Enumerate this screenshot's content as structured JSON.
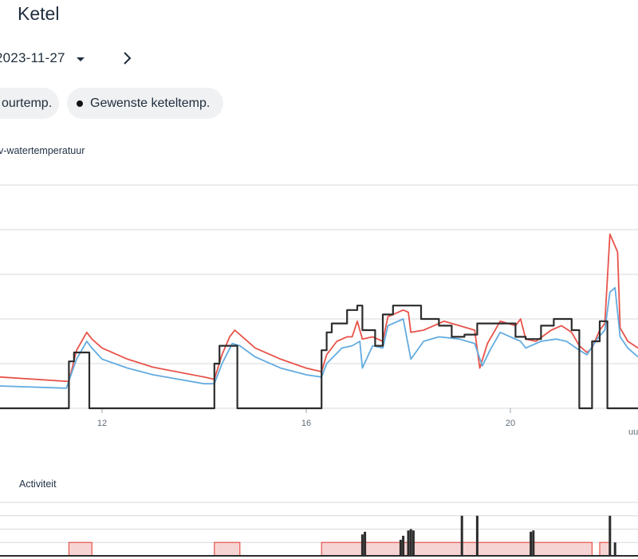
{
  "header": {
    "title": "Ketel"
  },
  "nav": {
    "date": "2023-11-27"
  },
  "filters": [
    {
      "label": "ourtemp."
    },
    {
      "label": "Gewenste keteltemp."
    }
  ],
  "colors": {
    "red": "#e8534a",
    "blue": "#63ace0",
    "black": "#2c2c2c",
    "grid": "#d6d9dd",
    "activity_fill": "#f7d4d4",
    "activity_stroke": "#e8534a"
  },
  "chart_data": [
    {
      "type": "line",
      "title": "v-watertemperatuur",
      "xlim": [
        10,
        22.5
      ],
      "ylim": [
        0,
        5
      ],
      "x_ticks": [
        {
          "value": 12,
          "label": "12"
        },
        {
          "value": 16,
          "label": "16"
        },
        {
          "value": 20,
          "label": "20"
        }
      ],
      "x_unit_label": "uu",
      "grid": true,
      "series": [
        {
          "color": "red",
          "points": [
            [
              10,
              0.7
            ],
            [
              11.35,
              0.6
            ],
            [
              11.5,
              1.3
            ],
            [
              11.7,
              1.7
            ],
            [
              11.8,
              1.55
            ],
            [
              12,
              1.35
            ],
            [
              12.5,
              1.1
            ],
            [
              13,
              0.92
            ],
            [
              14,
              0.7
            ],
            [
              14.2,
              0.65
            ],
            [
              14.35,
              1.2
            ],
            [
              14.5,
              1.6
            ],
            [
              14.6,
              1.75
            ],
            [
              14.8,
              1.55
            ],
            [
              15,
              1.35
            ],
            [
              15.5,
              1.1
            ],
            [
              16,
              0.9
            ],
            [
              16.3,
              0.82
            ],
            [
              16.4,
              1.2
            ],
            [
              16.6,
              1.5
            ],
            [
              16.8,
              1.6
            ],
            [
              16.9,
              1.6
            ],
            [
              17,
              1.95
            ],
            [
              17.1,
              1.55
            ],
            [
              17.3,
              1.6
            ],
            [
              17.5,
              1.5
            ],
            [
              17.6,
              2.05
            ],
            [
              17.9,
              2.2
            ],
            [
              18,
              2.15
            ],
            [
              18.05,
              1.7
            ],
            [
              18.3,
              1.75
            ],
            [
              18.5,
              1.85
            ],
            [
              18.7,
              1.95
            ],
            [
              19,
              1.85
            ],
            [
              19.3,
              1.75
            ],
            [
              19.4,
              0.9
            ],
            [
              19.55,
              1.45
            ],
            [
              19.8,
              1.95
            ],
            [
              20.1,
              1.85
            ],
            [
              20.2,
              2.0
            ],
            [
              20.3,
              1.55
            ],
            [
              20.5,
              1.5
            ],
            [
              20.8,
              1.75
            ],
            [
              21,
              1.85
            ],
            [
              21.2,
              1.7
            ],
            [
              21.35,
              1.4
            ],
            [
              21.5,
              1.25
            ],
            [
              21.6,
              1.35
            ],
            [
              21.75,
              1.75
            ],
            [
              21.85,
              1.9
            ],
            [
              21.95,
              3.9
            ],
            [
              22.1,
              3.5
            ],
            [
              22.15,
              1.8
            ],
            [
              22.3,
              1.5
            ],
            [
              22.5,
              1.35
            ]
          ]
        },
        {
          "color": "blue",
          "points": [
            [
              10,
              0.5
            ],
            [
              11.3,
              0.45
            ],
            [
              11.5,
              1.1
            ],
            [
              11.7,
              1.5
            ],
            [
              11.8,
              1.35
            ],
            [
              12,
              1.1
            ],
            [
              12.5,
              0.9
            ],
            [
              13,
              0.75
            ],
            [
              14,
              0.55
            ],
            [
              14.2,
              0.55
            ],
            [
              14.35,
              1.0
            ],
            [
              14.55,
              1.45
            ],
            [
              14.7,
              1.4
            ],
            [
              15,
              1.15
            ],
            [
              15.5,
              0.9
            ],
            [
              16,
              0.75
            ],
            [
              16.3,
              0.7
            ],
            [
              16.4,
              1.0
            ],
            [
              16.7,
              1.35
            ],
            [
              16.9,
              1.4
            ],
            [
              17.05,
              1.5
            ],
            [
              17.1,
              0.9
            ],
            [
              17.3,
              1.4
            ],
            [
              17.5,
              1.35
            ],
            [
              17.6,
              1.85
            ],
            [
              17.9,
              2.0
            ],
            [
              18.05,
              1.1
            ],
            [
              18.3,
              1.5
            ],
            [
              18.6,
              1.6
            ],
            [
              19,
              1.55
            ],
            [
              19.3,
              1.45
            ],
            [
              19.45,
              0.95
            ],
            [
              19.6,
              1.3
            ],
            [
              19.8,
              1.7
            ],
            [
              20.2,
              1.5
            ],
            [
              20.3,
              1.35
            ],
            [
              20.6,
              1.5
            ],
            [
              20.9,
              1.55
            ],
            [
              21.1,
              1.5
            ],
            [
              21.35,
              1.3
            ],
            [
              21.5,
              1.2
            ],
            [
              21.7,
              1.55
            ],
            [
              21.85,
              1.75
            ],
            [
              21.95,
              2.6
            ],
            [
              22.05,
              2.7
            ],
            [
              22.15,
              1.6
            ],
            [
              22.3,
              1.35
            ],
            [
              22.5,
              1.15
            ]
          ]
        },
        {
          "color": "black",
          "points": [
            [
              10,
              0
            ],
            [
              11.35,
              0
            ],
            [
              11.35,
              1.05
            ],
            [
              11.45,
              1.05
            ],
            [
              11.45,
              1.25
            ],
            [
              11.75,
              1.25
            ],
            [
              11.75,
              0
            ],
            [
              14.2,
              0
            ],
            [
              14.2,
              1.0
            ],
            [
              14.3,
              1.0
            ],
            [
              14.3,
              1.4
            ],
            [
              14.65,
              1.4
            ],
            [
              14.65,
              0
            ],
            [
              16.3,
              0
            ],
            [
              16.3,
              1.3
            ],
            [
              16.4,
              1.3
            ],
            [
              16.4,
              1.7
            ],
            [
              16.5,
              1.7
            ],
            [
              16.5,
              1.9
            ],
            [
              16.8,
              1.9
            ],
            [
              16.8,
              2.2
            ],
            [
              17,
              2.2
            ],
            [
              17,
              2.3
            ],
            [
              17.1,
              2.3
            ],
            [
              17.1,
              1.75
            ],
            [
              17.35,
              1.75
            ],
            [
              17.35,
              1.4
            ],
            [
              17.5,
              1.4
            ],
            [
              17.5,
              2.1
            ],
            [
              17.7,
              2.1
            ],
            [
              17.7,
              2.3
            ],
            [
              18.25,
              2.3
            ],
            [
              18.25,
              2.0
            ],
            [
              18.6,
              2.0
            ],
            [
              18.6,
              1.85
            ],
            [
              18.85,
              1.85
            ],
            [
              18.85,
              1.6
            ],
            [
              19.1,
              1.6
            ],
            [
              19.1,
              1.65
            ],
            [
              19.35,
              1.65
            ],
            [
              19.35,
              1.9
            ],
            [
              20.1,
              1.9
            ],
            [
              20.1,
              1.6
            ],
            [
              20.3,
              1.6
            ],
            [
              20.3,
              1.55
            ],
            [
              20.6,
              1.55
            ],
            [
              20.6,
              1.85
            ],
            [
              20.85,
              1.85
            ],
            [
              20.85,
              2.0
            ],
            [
              21.2,
              2.0
            ],
            [
              21.2,
              1.75
            ],
            [
              21.35,
              1.75
            ],
            [
              21.35,
              0
            ],
            [
              21.6,
              0
            ],
            [
              21.6,
              1.5
            ],
            [
              21.75,
              1.5
            ],
            [
              21.75,
              1.95
            ],
            [
              21.9,
              1.95
            ],
            [
              21.9,
              0
            ],
            [
              22.5,
              0
            ]
          ]
        }
      ]
    },
    {
      "type": "bar",
      "title": "Activiteit",
      "xlim": [
        10,
        22.5
      ],
      "ylim": [
        0,
        4
      ],
      "grid": true,
      "fill_blocks": [
        [
          11.35,
          11.8
        ],
        [
          14.2,
          14.7
        ],
        [
          16.3,
          21.6
        ],
        [
          21.75,
          21.95
        ]
      ],
      "spikes": [
        [
          17.1,
          1.6
        ],
        [
          17.15,
          1.8
        ],
        [
          17.85,
          1.2
        ],
        [
          17.9,
          1.5
        ],
        [
          18.0,
          1.9
        ],
        [
          18.05,
          2.0
        ],
        [
          18.1,
          1.9
        ],
        [
          19.05,
          3.0
        ],
        [
          19.35,
          3.0
        ],
        [
          20.4,
          1.8
        ],
        [
          20.45,
          1.9
        ],
        [
          21.95,
          3.0
        ],
        [
          22.05,
          1.0
        ]
      ]
    }
  ]
}
